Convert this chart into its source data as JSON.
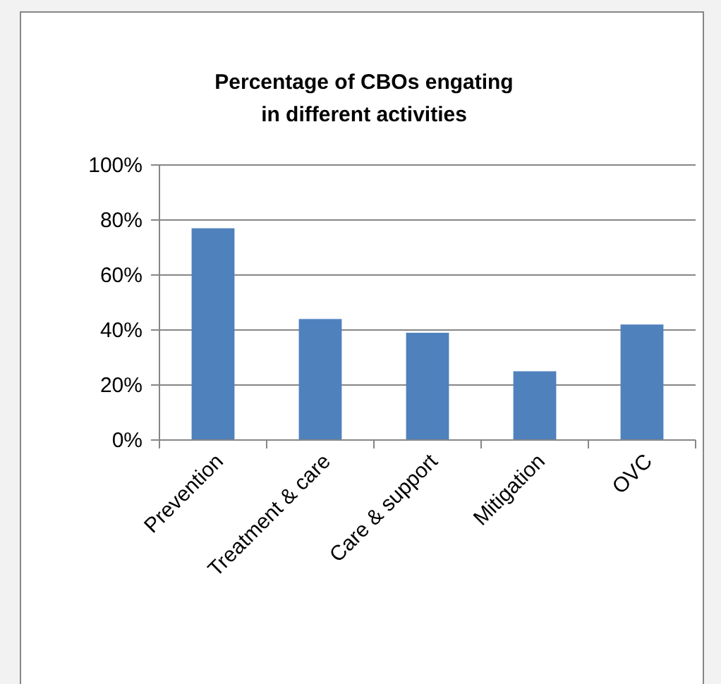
{
  "chart_data": {
    "type": "bar",
    "title": "Percentage of CBOs engating in different activities",
    "categories": [
      "Prevention",
      "Treatment & care",
      "Care & support",
      "Mitigation",
      "OVC"
    ],
    "values": [
      77,
      44,
      39,
      25,
      42
    ],
    "color": "#4f81bd",
    "ylim": [
      0,
      100
    ],
    "yticks": [
      {
        "value": 0,
        "label": "0%"
      },
      {
        "value": 20,
        "label": "20%"
      },
      {
        "value": 40,
        "label": "40%"
      },
      {
        "value": 60,
        "label": "60%"
      },
      {
        "value": 80,
        "label": "80%"
      },
      {
        "value": 100,
        "label": "100%"
      }
    ],
    "grid": "y"
  }
}
